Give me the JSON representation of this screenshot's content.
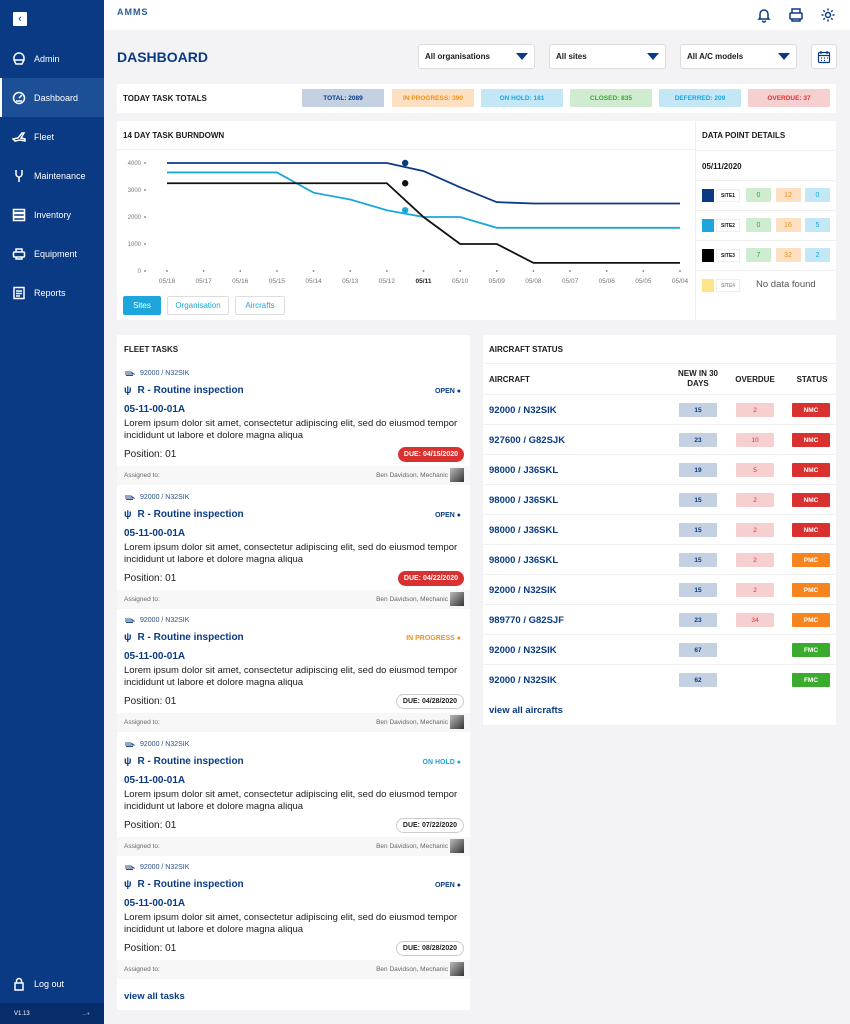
{
  "app": {
    "logo": "AMMS",
    "title": "DASHBOARD",
    "version": "V1.13"
  },
  "sidebar": {
    "items": [
      {
        "label": "Admin",
        "icon": "helmet-icon"
      },
      {
        "label": "Dashboard",
        "icon": "gauge-icon",
        "active": true
      },
      {
        "label": "Fleet",
        "icon": "airplane-icon"
      },
      {
        "label": "Maintenance",
        "icon": "wrench-icon"
      },
      {
        "label": "Inventory",
        "icon": "server-icon"
      },
      {
        "label": "Equipment",
        "icon": "printer-icon"
      },
      {
        "label": "Reports",
        "icon": "document-icon"
      }
    ],
    "logout": "Log out"
  },
  "filters": {
    "organisation": "All organisations",
    "site": "All sites",
    "model": "All A/C models"
  },
  "totals": {
    "title": "TODAY TASK TOTALS",
    "badges": [
      {
        "label": "TOTAL: 2089",
        "bg": "#c3d1e3",
        "fg": "#0a3a84"
      },
      {
        "label": "IN PROGRESS: 390",
        "bg": "#fde0c2",
        "fg": "#f0901f"
      },
      {
        "label": "ON HOLD: 181",
        "bg": "#c4e7f6",
        "fg": "#1ca6dc"
      },
      {
        "label": "CLOSED: 835",
        "bg": "#d0ecd0",
        "fg": "#3aa53a"
      },
      {
        "label": "DEFERRED: 209",
        "bg": "#c4e7f6",
        "fg": "#1ca6dc"
      },
      {
        "label": "OVERDUE: 37",
        "bg": "#f6cfd1",
        "fg": "#d33"
      }
    ]
  },
  "chart_data": {
    "type": "line",
    "title": "14 DAY TASK BURNDOWN",
    "categories": [
      "05/18",
      "05/17",
      "05/16",
      "05/15",
      "05/14",
      "05/13",
      "05/12",
      "05/11",
      "05/10",
      "05/09",
      "05/08",
      "05/07",
      "05/06",
      "05/05",
      "05/04"
    ],
    "highlight_category": "05/11",
    "ylim": [
      0,
      4000
    ],
    "yticks": [
      0,
      1000,
      2000,
      3000,
      4000
    ],
    "grid": false,
    "legend": "none",
    "series": [
      {
        "color": "#0a3a84",
        "values": [
          4000,
          4000,
          4000,
          4000,
          4000,
          4000,
          4000,
          3700,
          3100,
          2550,
          2500,
          2500,
          2500,
          2500,
          2500
        ]
      },
      {
        "color": "#1ca6dc",
        "values": [
          3650,
          3650,
          3650,
          3650,
          2900,
          2650,
          2250,
          2000,
          2000,
          1600,
          1600,
          1600,
          1600,
          1600,
          1600
        ]
      },
      {
        "color": "#111111",
        "values": [
          3250,
          3250,
          3250,
          3250,
          3250,
          3250,
          3250,
          2000,
          1000,
          1000,
          300,
          300,
          300,
          300,
          300
        ]
      }
    ],
    "buttons": [
      "Sites",
      "Organisation",
      "Aircrafts"
    ]
  },
  "details": {
    "title": "DATA POINT DETAILS",
    "date": "05/11/2020",
    "sites": [
      {
        "label": "SITE1",
        "color": "#0a3a84",
        "values": [
          "0",
          "12",
          "0"
        ]
      },
      {
        "label": "SITE2",
        "color": "#1ca6dc",
        "values": [
          "0",
          "16",
          "5"
        ]
      },
      {
        "label": "SITE3",
        "color": "#000000",
        "values": [
          "7",
          "32",
          "2"
        ]
      },
      {
        "label": "SITE4",
        "color": "#fde38a",
        "empty": "No data found"
      }
    ]
  },
  "fleet": {
    "title": "FLEET TASKS",
    "view_all": "view all tasks",
    "assigned_label": "Assigned to:",
    "tasks": [
      {
        "aircraft": "92000 / N32SIK",
        "title": "R - Routine inspection",
        "status": "OPEN",
        "status_color": "#0a3a84",
        "code": "05-11-00-01A",
        "desc": "Lorem ipsum dolor sit amet, consectetur adipiscing elit, sed do eiusmod tempor incididunt ut labore et dolore magna aliqua",
        "position": "Position: 01",
        "due": "DUE: 04/15/2020",
        "overdue": true,
        "assignee": "Ben Davidson, Mechanic"
      },
      {
        "aircraft": "92000 / N32SIK",
        "title": "R - Routine inspection",
        "status": "OPEN",
        "status_color": "#0a3a84",
        "code": "05-11-00-01A",
        "desc": "Lorem ipsum dolor sit amet, consectetur adipiscing elit, sed do eiusmod tempor incididunt ut labore et dolore magna aliqua",
        "position": "Position: 01",
        "due": "DUE: 04/22/2020",
        "overdue": true,
        "assignee": "Ben Davidson, Mechanic"
      },
      {
        "aircraft": "92000 / N32SIK",
        "title": "R - Routine inspection",
        "status": "IN PROGRESS",
        "status_color": "#f0901f",
        "code": "05-11-00-01A",
        "desc": "Lorem ipsum dolor sit amet, consectetur adipiscing elit, sed do eiusmod tempor incididunt ut labore et dolore magna aliqua",
        "position": "Position: 01",
        "due": "DUE: 04/28/2020",
        "overdue": false,
        "assignee": "Ben Davidson, Mechanic"
      },
      {
        "aircraft": "92000 / N32SIK",
        "title": "R - Routine inspection",
        "status": "ON HOLD",
        "status_color": "#1ca6dc",
        "code": "05-11-00-01A",
        "desc": "Lorem ipsum dolor sit amet, consectetur adipiscing elit, sed do eiusmod tempor incididunt ut labore et dolore magna aliqua",
        "position": "Position: 01",
        "due": "DUE: 07/22/2020",
        "overdue": false,
        "assignee": "Ben Davidson, Mechanic"
      },
      {
        "aircraft": "92000 / N32SIK",
        "title": "R - Routine inspection",
        "status": "OPEN",
        "status_color": "#0a3a84",
        "code": "05-11-00-01A",
        "desc": "Lorem ipsum dolor sit amet, consectetur adipiscing elit, sed do eiusmod tempor incididunt ut labore et dolore magna aliqua",
        "position": "Position: 01",
        "due": "DUE: 08/28/2020",
        "overdue": false,
        "assignee": "Ben Davidson, Mechanic"
      }
    ]
  },
  "aircraft": {
    "title": "AIRCRAFT STATUS",
    "headers": [
      "AIRCRAFT",
      "NEW IN 30 DAYS",
      "OVERDUE",
      "STATUS"
    ],
    "view_all": "view all aircrafts",
    "status_colors": {
      "NMC": "#d93030",
      "PMC": "#f7841e",
      "FMC": "#3aab2e"
    },
    "rows": [
      {
        "name": "92000 / N32SIK",
        "new": "15",
        "overdue": "2",
        "status": "NMC"
      },
      {
        "name": "927600 / G82SJK",
        "new": "23",
        "overdue": "10",
        "status": "NMC"
      },
      {
        "name": "98000 / J36SKL",
        "new": "19",
        "overdue": "5",
        "status": "NMC"
      },
      {
        "name": "98000 / J36SKL",
        "new": "15",
        "overdue": "2",
        "status": "NMC"
      },
      {
        "name": "98000 / J36SKL",
        "new": "15",
        "overdue": "2",
        "status": "NMC"
      },
      {
        "name": "98000 / J36SKL",
        "new": "15",
        "overdue": "2",
        "status": "PMC"
      },
      {
        "name": "92000 / N32SIK",
        "new": "15",
        "overdue": "2",
        "status": "PMC"
      },
      {
        "name": "989770 / G82SJF",
        "new": "23",
        "overdue": "34",
        "status": "PMC"
      },
      {
        "name": "92000 / N32SIK",
        "new": "67",
        "overdue": "",
        "status": "FMC"
      },
      {
        "name": "92000 / N32SIK",
        "new": "62",
        "overdue": "",
        "status": "FMC"
      }
    ]
  }
}
